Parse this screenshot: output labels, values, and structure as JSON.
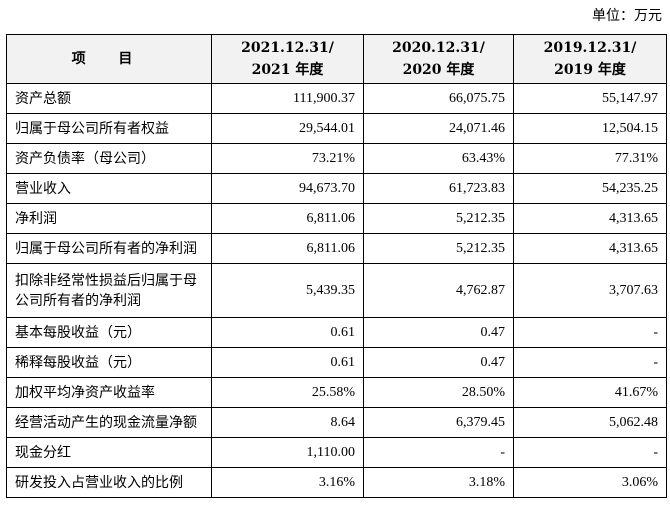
{
  "unit_label": "单位：万元",
  "headers": {
    "item": "项 目",
    "col1": [
      "2021.12.31/",
      "2021 年度"
    ],
    "col2": [
      "2020.12.31/",
      "2020 年度"
    ],
    "col3": [
      "2019.12.31/",
      "2019 年度"
    ]
  },
  "rows": [
    {
      "label": "资产总额",
      "v1": "111,900.37",
      "v2": "66,075.75",
      "v3": "55,147.97"
    },
    {
      "label": "归属于母公司所有者权益",
      "v1": "29,544.01",
      "v2": "24,071.46",
      "v3": "12,504.15"
    },
    {
      "label": "资产负债率（母公司）",
      "v1": "73.21%",
      "v2": "63.43%",
      "v3": "77.31%"
    },
    {
      "label": "营业收入",
      "v1": "94,673.70",
      "v2": "61,723.83",
      "v3": "54,235.25"
    },
    {
      "label": "净利润",
      "v1": "6,811.06",
      "v2": "5,212.35",
      "v3": "4,313.65"
    },
    {
      "label": "归属于母公司所有者的净利润",
      "v1": "6,811.06",
      "v2": "5,212.35",
      "v3": "4,313.65"
    },
    {
      "label": "扣除非经常性损益后归属于母公司所有者的净利润",
      "v1": "5,439.35",
      "v2": "4,762.87",
      "v3": "3,707.63"
    },
    {
      "label": "基本每股收益（元）",
      "v1": "0.61",
      "v2": "0.47",
      "v3": "-"
    },
    {
      "label": "稀释每股收益（元）",
      "v1": "0.61",
      "v2": "0.47",
      "v3": "-"
    },
    {
      "label": "加权平均净资产收益率",
      "v1": "25.58%",
      "v2": "28.50%",
      "v3": "41.67%"
    },
    {
      "label": "经营活动产生的现金流量净额",
      "v1": "8.64",
      "v2": "6,379.45",
      "v3": "5,062.48"
    },
    {
      "label": "现金分红",
      "v1": "1,110.00",
      "v2": "-",
      "v3": "-"
    },
    {
      "label": "研发投入占营业收入的比例",
      "v1": "3.16%",
      "v2": "3.18%",
      "v3": "3.06%"
    }
  ]
}
